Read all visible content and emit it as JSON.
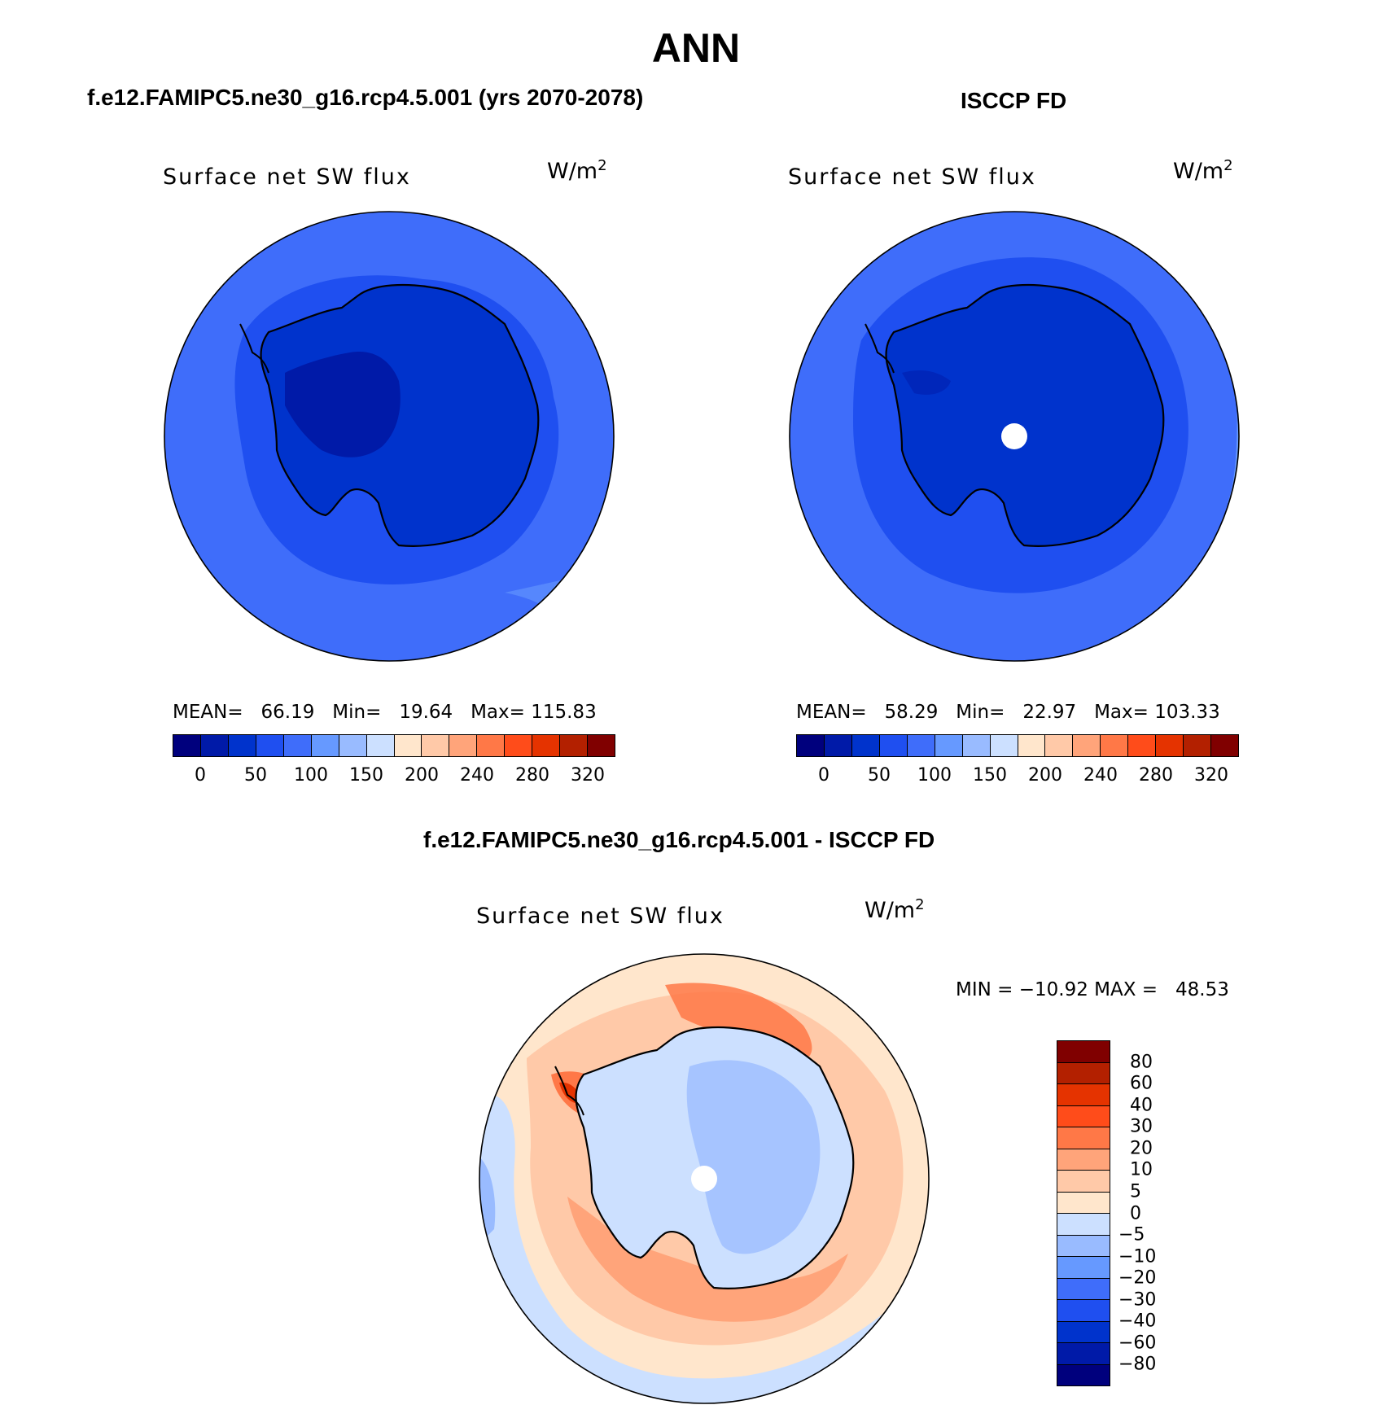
{
  "figure": {
    "title": "ANN"
  },
  "panels": [
    {
      "header": "f.e12.FAMIPC5.ne30_g16.rcp4.5.001 (yrs 2070-2078)",
      "variable": "Surface net SW flux",
      "units": "W/m",
      "units_exp": "2",
      "stats": "MEAN=   66.19   Min=   19.64   Max= 115.83",
      "colorbar_ticks": [
        "0",
        "50",
        "100",
        "150",
        "200",
        "240",
        "280",
        "320"
      ]
    },
    {
      "header": "ISCCP FD",
      "variable": "Surface net SW flux",
      "units": "W/m",
      "units_exp": "2",
      "stats": "MEAN=   58.29   Min=   22.97   Max= 103.33",
      "colorbar_ticks": [
        "0",
        "50",
        "100",
        "150",
        "200",
        "240",
        "280",
        "320"
      ]
    }
  ],
  "diff": {
    "header": "f.e12.FAMIPC5.ne30_g16.rcp4.5.001 - ISCCP FD",
    "variable": "Surface net SW flux",
    "units": "W/m",
    "units_exp": "2",
    "stats": "MIN = −10.92 MAX =   48.53",
    "colorbar_ticks": [
      "80",
      "60",
      "40",
      "30",
      "20",
      "10",
      "5",
      "0",
      "−5",
      "−10",
      "−20",
      "−30",
      "−40",
      "−60",
      "−80"
    ]
  },
  "colors": {
    "seq": [
      "#00007d",
      "#001aa8",
      "#0033cc",
      "#1f4ff0",
      "#3f6dfa",
      "#6699ff",
      "#99bbff",
      "#cce0ff",
      "#ffe6cc",
      "#ffc9a8",
      "#ffa47a",
      "#ff7847",
      "#ff4c1a",
      "#e53300",
      "#b32000",
      "#800000"
    ],
    "diff": [
      "#800000",
      "#b32000",
      "#e53300",
      "#ff4c1a",
      "#ff7847",
      "#ffa47a",
      "#ffc9a8",
      "#ffe6cc",
      "#cce0ff",
      "#99bbff",
      "#6699ff",
      "#3f6dfa",
      "#1f4ff0",
      "#0033cc",
      "#001aa8",
      "#00007d"
    ]
  }
}
